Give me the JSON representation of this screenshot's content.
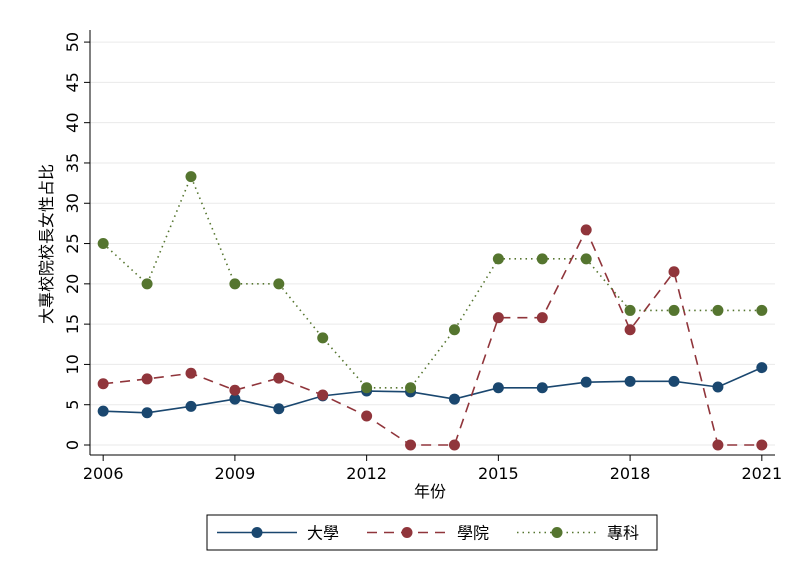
{
  "chart_data": {
    "type": "line",
    "x_label": "年份",
    "y_label": "大專校院校長女性占比",
    "x": [
      2006,
      2007,
      2008,
      2009,
      2010,
      2011,
      2012,
      2013,
      2014,
      2015,
      2016,
      2017,
      2018,
      2019,
      2020,
      2021
    ],
    "series": [
      {
        "name": "大學",
        "color": "#1a476f",
        "dash": "solid",
        "values": [
          4.2,
          4.0,
          4.8,
          5.7,
          4.5,
          6.1,
          6.7,
          6.6,
          5.7,
          7.1,
          7.1,
          7.8,
          7.9,
          7.9,
          7.2,
          9.6
        ]
      },
      {
        "name": "學院",
        "color": "#90353b",
        "dash": "dashed",
        "values": [
          7.6,
          8.2,
          8.9,
          6.8,
          8.3,
          6.2,
          3.6,
          0,
          0,
          15.8,
          15.8,
          26.7,
          14.3,
          21.5,
          0,
          0
        ]
      },
      {
        "name": "專科",
        "color": "#55752f",
        "dash": "dotted",
        "values": [
          25,
          20,
          33.3,
          20,
          20,
          13.3,
          7.1,
          7.1,
          14.3,
          23.1,
          23.1,
          23.1,
          16.7,
          16.7,
          16.7,
          16.7
        ]
      }
    ],
    "xlim": [
      2005.7,
      2021.3
    ],
    "xticks": [
      2006,
      2009,
      2012,
      2015,
      2018,
      2021
    ],
    "ylim": [
      -1.24,
      51.5
    ],
    "yticks": [
      0,
      5,
      10,
      15,
      20,
      25,
      30,
      35,
      40,
      45,
      50
    ],
    "grid": true,
    "legend": "bottom"
  }
}
